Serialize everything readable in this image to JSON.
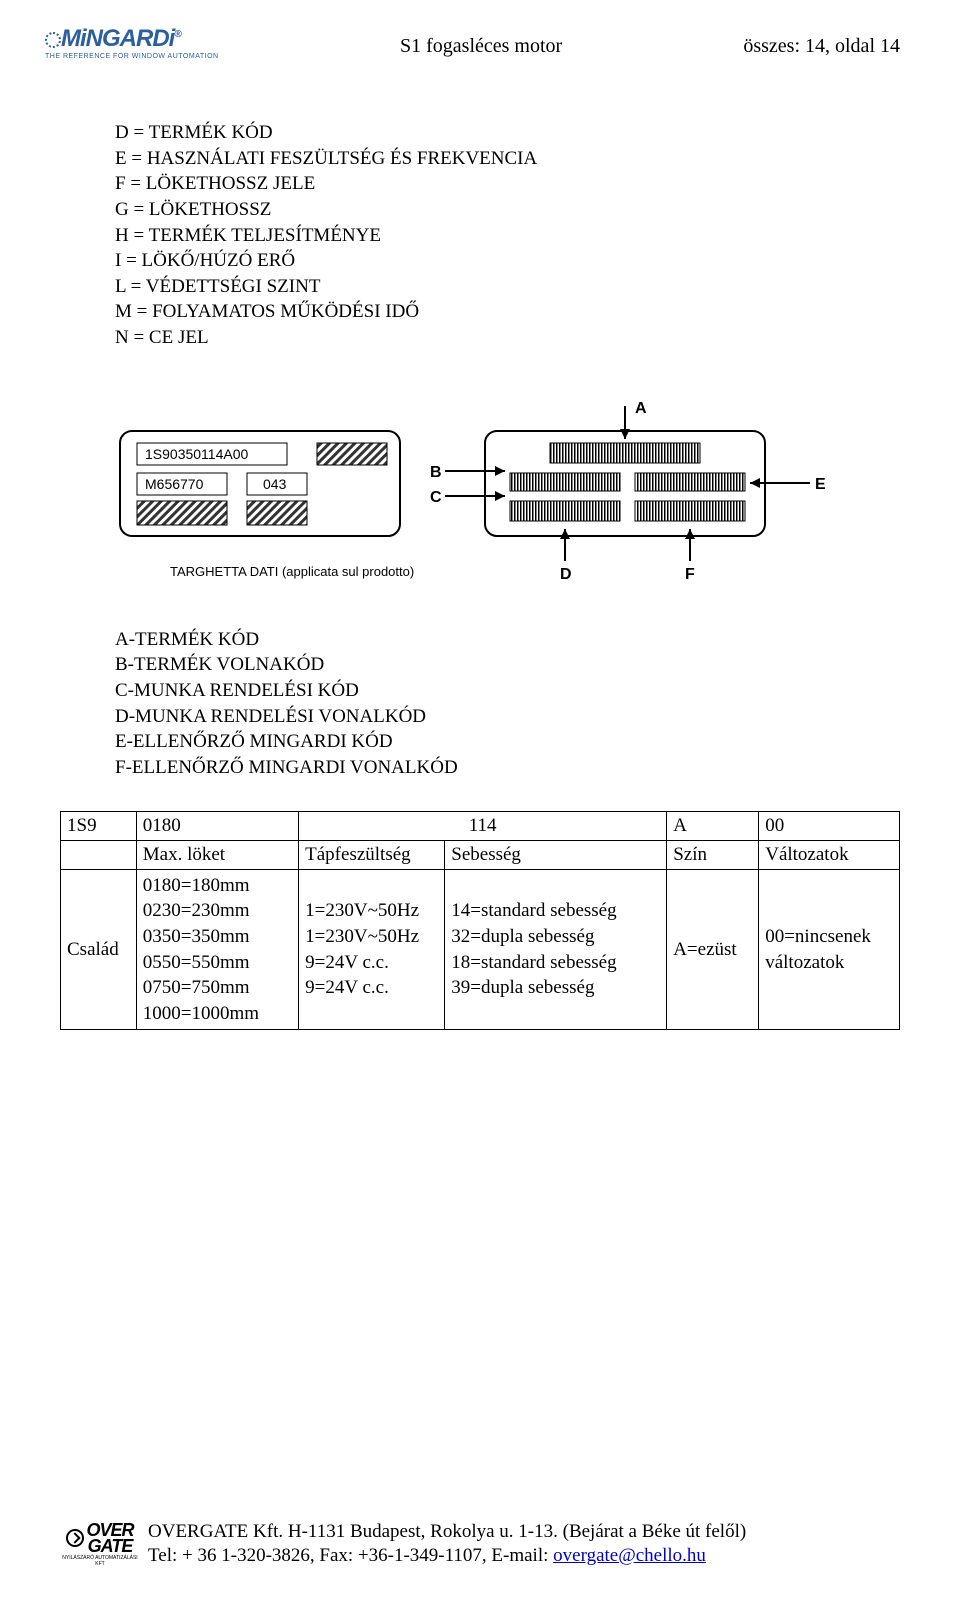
{
  "header": {
    "logo_text": "MiNGARDi",
    "logo_tagline": "THE REFERENCE FOR WINDOW AUTOMATION",
    "doc_title": "S1 fogasléces motor",
    "page_info": "összes: 14, oldal 14"
  },
  "definitions1": [
    "D = TERMÉK KÓD",
    "E = HASZNÁLATI FESZÜLTSÉG ÉS FREKVENCIA",
    "F = LÖKETHOSSZ JELE",
    "G = LÖKETHOSSZ",
    "H = TERMÉK TELJESÍTMÉNYE",
    "I = LÖKŐ/HÚZÓ ERŐ",
    "L = VÉDETTSÉGI SZINT",
    "M = FOLYAMATOS MŰKÖDÉSI IDŐ",
    "N = CE JEL"
  ],
  "diagram": {
    "label_top": "1S90350114A00",
    "label_b": "M656770",
    "label_c": "043",
    "letters": {
      "a": "A",
      "b": "B",
      "c": "C",
      "d": "D",
      "e": "E",
      "f": "F"
    },
    "caption": "TARGHETTA DATI (applicata sul prodotto)",
    "line_color": "#000000",
    "fill_color": "#ffffff",
    "hatch_color": "#555555"
  },
  "definitions2": [
    "A-TERMÉK KÓD",
    "B-TERMÉK VOLNAKÓD",
    "C-MUNKA RENDELÉSI KÓD",
    "D-MUNKA RENDELÉSI VONALKÓD",
    "E-ELLENŐRZŐ MINGARDI KÓD",
    "F-ELLENŐRZŐ MINGARDI VONALKÓD"
  ],
  "table": {
    "row1": [
      "1S9",
      "0180",
      "114",
      "A",
      "00"
    ],
    "row2": [
      "",
      "Max. löket",
      "Tápfeszültség",
      "Sebesség",
      "Szín",
      "Változatok"
    ],
    "row3": {
      "c0": "Család",
      "c1": "0180=180mm\n0230=230mm\n0350=350mm\n0550=550mm\n0750=750mm\n1000=1000mm",
      "c2": "1=230V~50Hz\n1=230V~50Hz\n9=24V c.c.\n9=24V c.c.",
      "c3": "14=standard sebesség\n32=dupla sebesség\n18=standard sebesség\n39=dupla sebesség",
      "c4": "A=ezüst",
      "c5": "00=nincsenek\nváltozatok"
    }
  },
  "footer": {
    "logo_line1": "OVER",
    "logo_line2": "GATE",
    "logo_sub": "NYÍLÁSZÁRÓ AUTOMATIZÁLÁSI KFT",
    "line1": "OVERGATE Kft. H-1131 Budapest, Rokolya u. 1-13. (Bejárat a Béke út felől)",
    "line2_pre": "Tel: + 36 1-320-3826, Fax: +36-1-349-1107, E-mail: ",
    "email": "overgate@chello.hu"
  }
}
